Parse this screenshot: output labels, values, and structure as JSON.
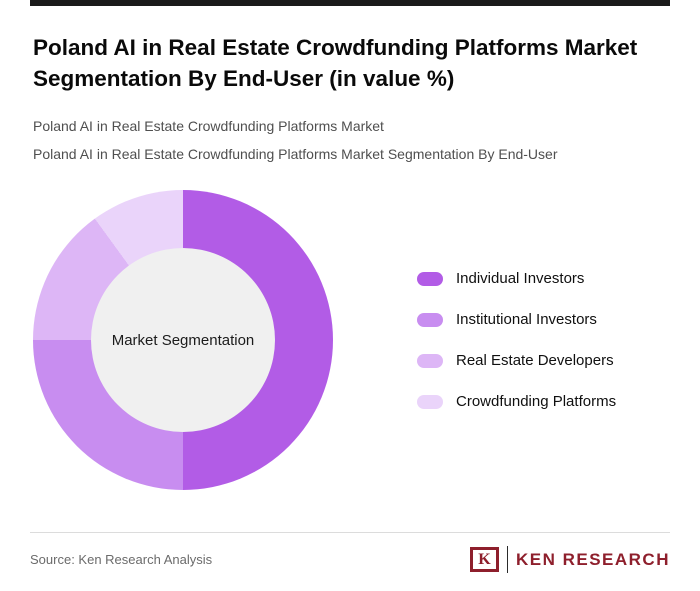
{
  "accent_bar_color": "#1a1a1a",
  "header": {
    "title": "Poland AI in Real Estate Crowdfunding Platforms Market Segmentation By End-User (in value %)",
    "subtitle_lines": [
      "Poland AI in Real Estate Crowdfunding Platforms Market",
      "Poland AI in Real Estate Crowdfunding Platforms Market Segmentation By End-User"
    ]
  },
  "chart_data": {
    "type": "pie",
    "variant": "donut",
    "title": "Poland AI in Real Estate Crowdfunding Platforms Market Segmentation By End-User (in value %)",
    "center_label": "Market Segmentation",
    "categories": [
      "Individual Investors",
      "Institutional Investors",
      "Real Estate Developers",
      "Crowdfunding Platforms"
    ],
    "values": [
      50,
      25,
      15,
      10
    ],
    "unit": "%",
    "colors": [
      "#b25ce6",
      "#c88df0",
      "#ddb6f6",
      "#ead4fa"
    ],
    "center_circle_color": "#f0f0f0",
    "legend_position": "right",
    "start_angle_deg": 0,
    "direction": "clockwise"
  },
  "footer": {
    "source": "Source: Ken Research Analysis",
    "logo": {
      "letter": "K",
      "text": "KEN RESEARCH",
      "color": "#8e1f2c"
    }
  }
}
